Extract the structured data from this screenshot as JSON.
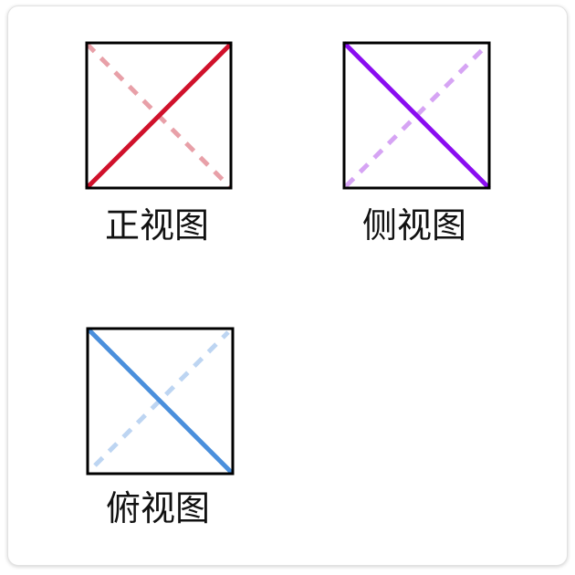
{
  "views": [
    {
      "label": "正视图",
      "color": "#d0112b",
      "faded_color": "#e8a0a8",
      "solid_diagonal": "bottom-left-to-top-right",
      "dashed_diagonal": "top-left-to-bottom-right"
    },
    {
      "label": "侧视图",
      "color": "#8a0cf0",
      "faded_color": "#d6a4f4",
      "solid_diagonal": "top-left-to-bottom-right",
      "dashed_diagonal": "bottom-left-to-top-right"
    },
    {
      "label": "俯视图",
      "color": "#4a8fdc",
      "faded_color": "#bdd5f2",
      "solid_diagonal": "top-left-to-bottom-right",
      "dashed_diagonal": "bottom-left-to-top-right"
    }
  ],
  "colors": {
    "frame": "#000000",
    "label_text": "#111111",
    "card_border": "#e2e2e2"
  }
}
